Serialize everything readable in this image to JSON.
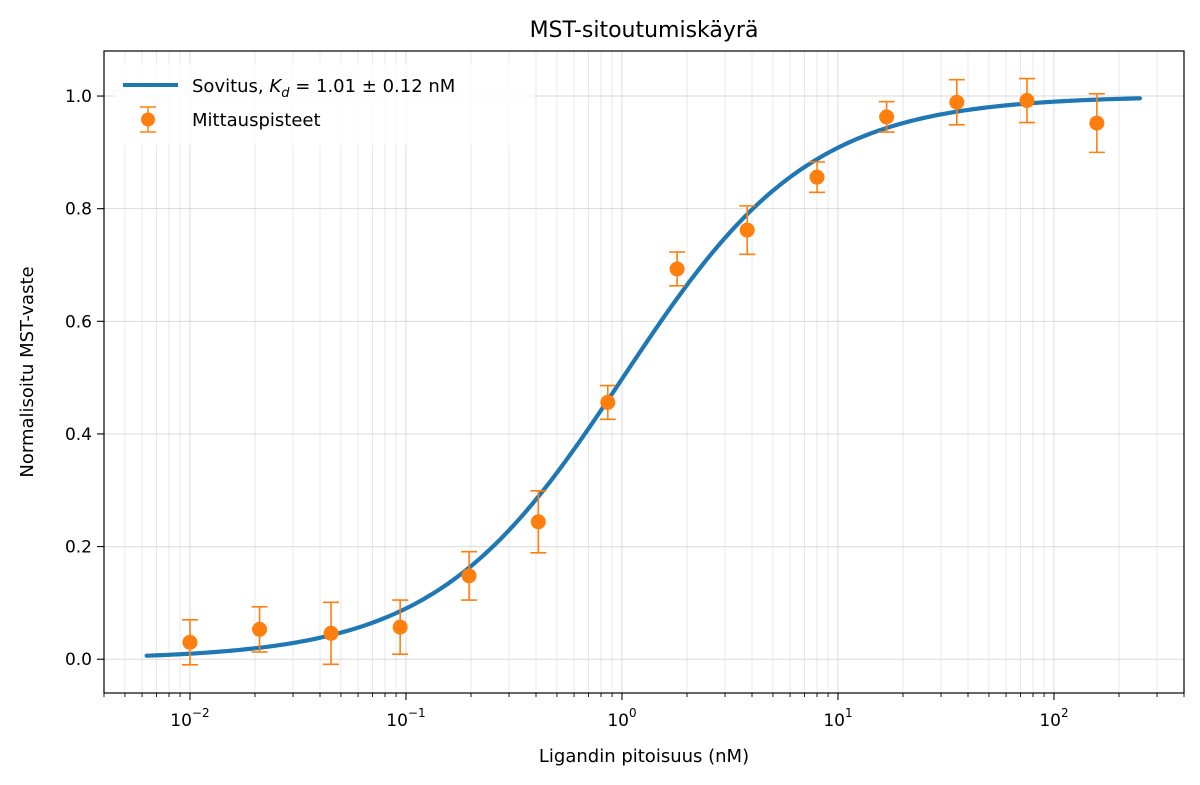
{
  "chart_data": {
    "type": "scatter",
    "title": "MST-sitoutumiskäyrä",
    "xlabel": "Ligandin pitoisuus (nM)",
    "ylabel": "Normalisoitu MST-vaste",
    "x_scale": "log",
    "xlim": [
      0.004,
      400
    ],
    "ylim": [
      -0.06,
      1.08
    ],
    "y_ticks": [
      "0.0",
      "0.2",
      "0.4",
      "0.6",
      "0.8",
      "1.0"
    ],
    "x_ticks": [
      {
        "base": "10",
        "exp": "−2",
        "value": 0.01
      },
      {
        "base": "10",
        "exp": "−1",
        "value": 0.1
      },
      {
        "base": "10",
        "exp": "0",
        "value": 1
      },
      {
        "base": "10",
        "exp": "1",
        "value": 10
      },
      {
        "base": "10",
        "exp": "2",
        "value": 100
      }
    ],
    "grid": true,
    "legend_position": "top-left",
    "legend": {
      "fit_prefix": "Sovitus, ",
      "fit_k": "K",
      "fit_sub": "d",
      "fit_suffix": " = 1.01 ± 0.12 nM",
      "points_label": "Mittauspisteet"
    },
    "fit": {
      "kd": 1.01,
      "kd_error": 0.12,
      "x_range": [
        0.0063,
        250
      ],
      "color": "#1f77b4"
    },
    "points": {
      "color": "#ff7f0e",
      "x": [
        0.01,
        0.021,
        0.045,
        0.094,
        0.196,
        0.41,
        0.86,
        1.8,
        3.8,
        8.0,
        16.8,
        35.5,
        75,
        158
      ],
      "y": [
        0.03,
        0.053,
        0.046,
        0.057,
        0.148,
        0.244,
        0.456,
        0.693,
        0.762,
        0.856,
        0.963,
        0.989,
        0.992,
        0.952
      ],
      "err": [
        0.04,
        0.04,
        0.055,
        0.048,
        0.043,
        0.055,
        0.03,
        0.03,
        0.043,
        0.027,
        0.027,
        0.04,
        0.039,
        0.052
      ]
    }
  }
}
